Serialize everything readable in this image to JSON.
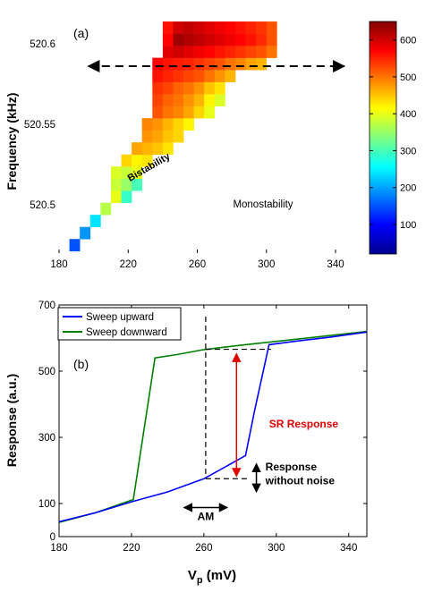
{
  "chart_data": [
    {
      "type": "heatmap",
      "panel_label": "(a)",
      "ylabel": "Frequency (kHz)",
      "xlim": [
        180,
        355
      ],
      "ylim": [
        520.47,
        520.616
      ],
      "x_ticks": [
        180,
        220,
        260,
        300,
        340
      ],
      "y_ticks": [
        520.5,
        520.55,
        520.6
      ],
      "cell_size": {
        "vp": 6,
        "freq": 0.0075
      },
      "colorbar": {
        "min": 20,
        "max": 650,
        "ticks": [
          100,
          200,
          300,
          400,
          500,
          600
        ]
      },
      "rows": [
        {
          "freq": 520.475,
          "x0": 186,
          "values": [
            150
          ]
        },
        {
          "freq": 520.4825,
          "x0": 192,
          "values": [
            190
          ]
        },
        {
          "freq": 520.49,
          "x0": 198,
          "values": [
            240
          ]
        },
        {
          "freq": 520.4975,
          "x0": 204,
          "values": [
            370
          ]
        },
        {
          "freq": 520.505,
          "x0": 210,
          "values": [
            400,
            290
          ]
        },
        {
          "freq": 520.5125,
          "x0": 210,
          "values": [
            380,
            350,
            300
          ]
        },
        {
          "freq": 520.52,
          "x0": 210,
          "values": [
            390,
            380,
            400
          ]
        },
        {
          "freq": 520.5275,
          "x0": 216,
          "values": [
            440,
            420,
            430
          ]
        },
        {
          "freq": 520.535,
          "x0": 222,
          "values": [
            470,
            460,
            450,
            430
          ]
        },
        {
          "freq": 520.5425,
          "x0": 228,
          "values": [
            480,
            470,
            450,
            440
          ]
        },
        {
          "freq": 520.55,
          "x0": 228,
          "values": [
            490,
            480,
            460,
            440,
            420
          ]
        },
        {
          "freq": 520.5575,
          "x0": 234,
          "values": [
            520,
            500,
            490,
            470,
            440,
            400
          ]
        },
        {
          "freq": 520.565,
          "x0": 234,
          "values": [
            530,
            510,
            500,
            480,
            460,
            420,
            390
          ]
        },
        {
          "freq": 520.5725,
          "x0": 234,
          "values": [
            540,
            530,
            510,
            500,
            480,
            450,
            430
          ]
        },
        {
          "freq": 520.58,
          "x0": 234,
          "values": [
            560,
            550,
            540,
            530,
            520,
            500,
            480,
            460
          ]
        },
        {
          "freq": 520.5875,
          "x0": 234,
          "values": [
            570,
            560,
            555,
            550,
            540,
            530,
            520,
            500,
            490,
            470,
            460
          ]
        },
        {
          "freq": 520.595,
          "x0": 240,
          "values": [
            590,
            600,
            590,
            580,
            570,
            560,
            550,
            540,
            530,
            520,
            500
          ]
        },
        {
          "freq": 520.6025,
          "x0": 240,
          "values": [
            570,
            630,
            620,
            610,
            600,
            590,
            580,
            570,
            560,
            545,
            520
          ]
        },
        {
          "freq": 520.61,
          "x0": 240,
          "values": [
            560,
            600,
            610,
            600,
            590,
            580,
            570,
            560,
            550,
            540,
            520
          ]
        }
      ],
      "annotations": [
        "Bistability",
        "Monostability"
      ],
      "arrow_freq": 520.586,
      "arrow_x": [
        197,
        345
      ]
    },
    {
      "type": "line",
      "panel_label": "(b)",
      "xlabel": "V",
      "xlabel_sub": "p",
      "xlabel_unit": " (mV)",
      "ylabel": "Response (a.u.)",
      "xlim": [
        180,
        350
      ],
      "ylim": [
        0,
        700
      ],
      "x_ticks": [
        180,
        220,
        260,
        300,
        340
      ],
      "y_ticks": [
        0,
        100,
        300,
        500,
        700
      ],
      "series": [
        {
          "name": "Sweep upward",
          "color": "#0000ff",
          "x": [
            180,
            200,
            220,
            240,
            260,
            270,
            283,
            288,
            296,
            310,
            330,
            350
          ],
          "y": [
            45,
            72,
            105,
            135,
            175,
            205,
            245,
            380,
            580,
            590,
            603,
            618
          ]
        },
        {
          "name": "Sweep downward",
          "color": "#008000",
          "x": [
            180,
            200,
            220,
            221,
            233,
            245,
            260,
            280,
            300,
            320,
            350
          ],
          "y": [
            43,
            72,
            110,
            112,
            540,
            550,
            565,
            578,
            590,
            602,
            620
          ]
        }
      ],
      "annotations": {
        "sr": "SR Response",
        "noise_line1": "Response",
        "noise_line2": "without noise",
        "am": "AM"
      }
    }
  ]
}
